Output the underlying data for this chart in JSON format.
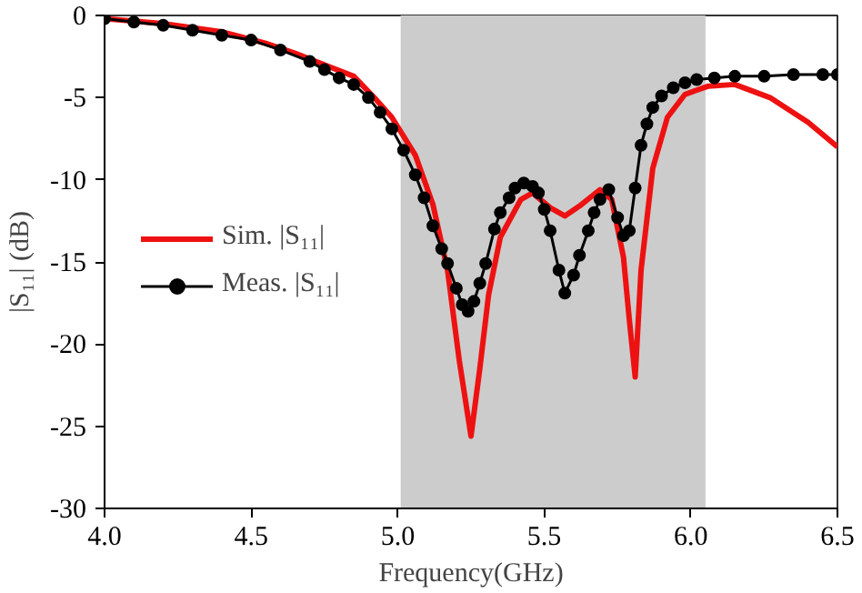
{
  "chart_data": {
    "type": "line",
    "xlabel": "Frequency(GHz)",
    "ylabel": "|S₁₁| (dB)",
    "xlim": [
      4.0,
      6.5
    ],
    "ylim": [
      -30,
      0
    ],
    "xticks": [
      {
        "value": 4.0,
        "label": "4.0"
      },
      {
        "value": 4.5,
        "label": "4.5"
      },
      {
        "value": 5.0,
        "label": "5.0"
      },
      {
        "value": 5.5,
        "label": "5.5"
      },
      {
        "value": 6.0,
        "label": "6.0"
      },
      {
        "value": 6.5,
        "label": "6.5"
      }
    ],
    "yticks": [
      -30,
      -25,
      -20,
      -15,
      -10,
      -5,
      0
    ],
    "grid": false,
    "legend": "left",
    "line_style": "solid",
    "bands": [
      {
        "axis": "x",
        "from": 5.01,
        "to": 6.05,
        "color": "#cccccc"
      }
    ],
    "series": [
      {
        "name": "Sim. |S₁₁|",
        "color": "#ee1111",
        "marker": "none",
        "x": [
          4.0,
          4.2,
          4.4,
          4.55,
          4.65,
          4.75,
          4.85,
          4.92,
          4.98,
          5.06,
          5.12,
          5.17,
          5.21,
          5.25,
          5.28,
          5.31,
          5.35,
          5.42,
          5.46,
          5.52,
          5.57,
          5.62,
          5.69,
          5.73,
          5.77,
          5.79,
          5.81,
          5.83,
          5.87,
          5.92,
          5.98,
          6.06,
          6.15,
          6.27,
          6.4,
          6.5
        ],
        "values": [
          -0.2,
          -0.5,
          -1.0,
          -1.7,
          -2.3,
          -3.0,
          -3.7,
          -5.0,
          -6.2,
          -8.5,
          -11.5,
          -15.5,
          -21.0,
          -25.6,
          -21.5,
          -17.0,
          -13.5,
          -11.2,
          -10.8,
          -11.7,
          -12.2,
          -11.6,
          -10.6,
          -11.2,
          -14.7,
          -18.5,
          -22.0,
          -15.5,
          -9.3,
          -6.2,
          -4.8,
          -4.3,
          -4.2,
          -5.0,
          -6.5,
          -8.0
        ]
      },
      {
        "name": "Meas. |S₁₁|",
        "color": "#000000",
        "marker": "circle",
        "x": [
          4.0,
          4.1,
          4.2,
          4.3,
          4.4,
          4.5,
          4.6,
          4.7,
          4.75,
          4.8,
          4.85,
          4.9,
          4.94,
          4.98,
          5.02,
          5.06,
          5.09,
          5.12,
          5.15,
          5.17,
          5.2,
          5.22,
          5.24,
          5.26,
          5.28,
          5.3,
          5.33,
          5.35,
          5.38,
          5.4,
          5.43,
          5.46,
          5.48,
          5.5,
          5.52,
          5.55,
          5.57,
          5.6,
          5.62,
          5.65,
          5.67,
          5.69,
          5.72,
          5.75,
          5.77,
          5.79,
          5.81,
          5.83,
          5.85,
          5.87,
          5.9,
          5.94,
          5.98,
          6.02,
          6.08,
          6.15,
          6.25,
          6.35,
          6.45,
          6.5
        ],
        "values": [
          -0.2,
          -0.4,
          -0.6,
          -0.9,
          -1.2,
          -1.5,
          -2.1,
          -2.8,
          -3.3,
          -3.8,
          -4.2,
          -5.0,
          -5.9,
          -6.9,
          -8.2,
          -9.7,
          -11.1,
          -12.8,
          -14.2,
          -15.1,
          -16.6,
          -17.6,
          -18.0,
          -17.4,
          -16.3,
          -15.1,
          -13.0,
          -12.0,
          -11.1,
          -10.5,
          -10.2,
          -10.4,
          -10.8,
          -11.8,
          -13.1,
          -15.5,
          -16.9,
          -15.8,
          -14.6,
          -13.1,
          -12.0,
          -11.2,
          -10.6,
          -12.3,
          -13.4,
          -13.1,
          -10.5,
          -7.9,
          -6.6,
          -5.6,
          -4.9,
          -4.4,
          -4.1,
          -3.9,
          -3.8,
          -3.7,
          -3.7,
          -3.6,
          -3.6,
          -3.6
        ]
      }
    ]
  }
}
